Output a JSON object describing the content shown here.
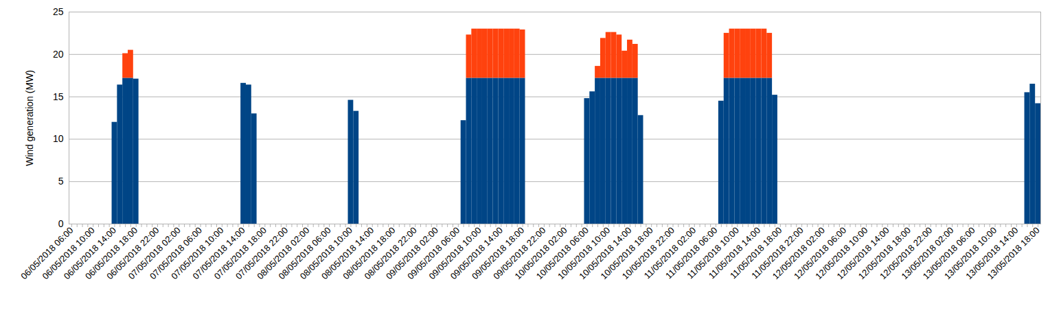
{
  "chart_data": {
    "type": "bar",
    "stacked": true,
    "grid": true,
    "y_label": "Wind generation (MW)",
    "ylim": [
      0,
      25
    ],
    "yticks": [
      0,
      5,
      10,
      15,
      20,
      25
    ],
    "categories": [
      "06/05/2018 06:00",
      null,
      null,
      null,
      "06/05/2018 10:00",
      null,
      null,
      null,
      "06/05/2018 14:00",
      null,
      null,
      null,
      "06/05/2018 18:00",
      null,
      null,
      null,
      "06/05/2018 22:00",
      null,
      null,
      null,
      "07/05/2018 02:00",
      null,
      null,
      null,
      "07/05/2018 06:00",
      null,
      null,
      null,
      "07/05/2018 10:00",
      null,
      null,
      null,
      "07/05/2018 14:00",
      null,
      null,
      null,
      "07/05/2018 18:00",
      null,
      null,
      null,
      "07/05/2018 22:00",
      null,
      null,
      null,
      "08/05/2018 02:00",
      null,
      null,
      null,
      "08/05/2018 06:00",
      null,
      null,
      null,
      "08/05/2018 10:00",
      null,
      null,
      null,
      "08/05/2018 14:00",
      null,
      null,
      null,
      "08/05/2018 18:00",
      null,
      null,
      null,
      "08/05/2018 22:00",
      null,
      null,
      null,
      "09/05/2018 02:00",
      null,
      null,
      null,
      "09/05/2018 06:00",
      null,
      null,
      null,
      "09/05/2018 10:00",
      null,
      null,
      null,
      "09/05/2018 14:00",
      null,
      null,
      null,
      "09/05/2018 18:00",
      null,
      null,
      null,
      "09/05/2018 22:00",
      null,
      null,
      null,
      "10/05/2018 02:00",
      null,
      null,
      null,
      "10/05/2018 06:00",
      null,
      null,
      null,
      "10/05/2018 10:00",
      null,
      null,
      null,
      "10/05/2018 14:00",
      null,
      null,
      null,
      "10/05/2018 18:00",
      null,
      null,
      null,
      "10/05/2018 22:00",
      null,
      null,
      null,
      "11/05/2018 02:00",
      null,
      null,
      null,
      "11/05/2018 06:00",
      null,
      null,
      null,
      "11/05/2018 10:00",
      null,
      null,
      null,
      "11/05/2018 14:00",
      null,
      null,
      null,
      "11/05/2018 18:00",
      null,
      null,
      null,
      "11/05/2018 22:00",
      null,
      null,
      null,
      "12/05/2018 02:00",
      null,
      null,
      null,
      "12/05/2018 06:00",
      null,
      null,
      null,
      "12/05/2018 10:00",
      null,
      null,
      null,
      "12/05/2018 14:00",
      null,
      null,
      null,
      "12/05/2018 18:00",
      null,
      null,
      null,
      "12/05/2018 22:00",
      null,
      null,
      null,
      "13/05/2018 02:00",
      null,
      null,
      null,
      "13/05/2018 06:00",
      null,
      null,
      null,
      "13/05/2018 10:00",
      null,
      null,
      null,
      "13/05/2018 14:00",
      null,
      null,
      null,
      "13/05/2018 18:00"
    ],
    "series": [
      {
        "color": "#004586",
        "values": [
          0,
          0,
          0,
          0,
          0,
          0,
          0,
          0,
          12.0,
          16.4,
          17.2,
          17.2,
          17.1,
          0,
          0,
          0,
          0,
          0,
          0,
          0,
          0,
          0,
          0,
          0,
          0,
          0,
          0,
          0,
          0,
          0,
          0,
          0,
          16.6,
          16.4,
          13.0,
          0,
          0,
          0,
          0,
          0,
          0,
          0,
          0,
          0,
          0,
          0,
          0,
          0,
          0,
          0,
          0,
          0,
          14.6,
          13.3,
          0,
          0,
          0,
          0,
          0,
          0,
          0,
          0,
          0,
          0,
          0,
          0,
          0,
          0,
          0,
          0,
          0,
          0,
          0,
          12.2,
          17.2,
          17.2,
          17.2,
          17.2,
          17.2,
          17.2,
          17.2,
          17.2,
          17.2,
          17.2,
          17.2,
          0,
          0,
          0,
          0,
          0,
          0,
          0,
          0,
          0,
          0,
          0,
          14.8,
          15.6,
          17.2,
          17.2,
          17.2,
          17.2,
          17.2,
          17.2,
          17.2,
          17.2,
          12.8,
          0,
          0,
          0,
          0,
          0,
          0,
          0,
          0,
          0,
          0,
          0,
          0,
          0,
          0,
          14.5,
          17.2,
          17.2,
          17.2,
          17.2,
          17.2,
          17.2,
          17.2,
          17.2,
          17.2,
          15.2,
          0,
          0,
          0,
          0,
          0,
          0,
          0,
          0,
          0,
          0,
          0,
          0,
          0,
          0,
          0,
          0,
          0,
          0,
          0,
          0,
          0,
          0,
          0,
          0,
          0,
          0,
          0,
          0,
          0,
          0,
          0,
          0,
          0,
          0,
          0,
          0,
          0,
          0,
          0,
          0,
          0,
          0,
          0,
          0,
          0,
          0,
          15.5,
          16.5,
          14.2
        ]
      },
      {
        "color": "#ff420e",
        "values": [
          0,
          0,
          0,
          0,
          0,
          0,
          0,
          0,
          0,
          0,
          2.9,
          3.3,
          0,
          0,
          0,
          0,
          0,
          0,
          0,
          0,
          0,
          0,
          0,
          0,
          0,
          0,
          0,
          0,
          0,
          0,
          0,
          0,
          0,
          0,
          0,
          0,
          0,
          0,
          0,
          0,
          0,
          0,
          0,
          0,
          0,
          0,
          0,
          0,
          0,
          0,
          0,
          0,
          0,
          0,
          0,
          0,
          0,
          0,
          0,
          0,
          0,
          0,
          0,
          0,
          0,
          0,
          0,
          0,
          0,
          0,
          0,
          0,
          0,
          0,
          5.1,
          5.8,
          5.8,
          5.8,
          5.8,
          5.8,
          5.8,
          5.8,
          5.8,
          5.8,
          5.7,
          0,
          0,
          0,
          0,
          0,
          0,
          0,
          0,
          0,
          0,
          0,
          0,
          0,
          1.4,
          4.7,
          5.4,
          5.4,
          5.1,
          3.2,
          4.5,
          4.0,
          0,
          0,
          0,
          0,
          0,
          0,
          0,
          0,
          0,
          0,
          0,
          0,
          0,
          0,
          0,
          0,
          5.3,
          5.8,
          5.8,
          5.8,
          5.8,
          5.8,
          5.8,
          5.8,
          5.3,
          0,
          0,
          0,
          0,
          0,
          0,
          0,
          0,
          0,
          0,
          0,
          0,
          0,
          0,
          0,
          0,
          0,
          0,
          0,
          0,
          0,
          0,
          0,
          0,
          0,
          0,
          0,
          0,
          0,
          0,
          0,
          0,
          0,
          0,
          0,
          0,
          0,
          0,
          0,
          0,
          0,
          0,
          0,
          0,
          0,
          0,
          0,
          0,
          0,
          0
        ]
      }
    ]
  }
}
